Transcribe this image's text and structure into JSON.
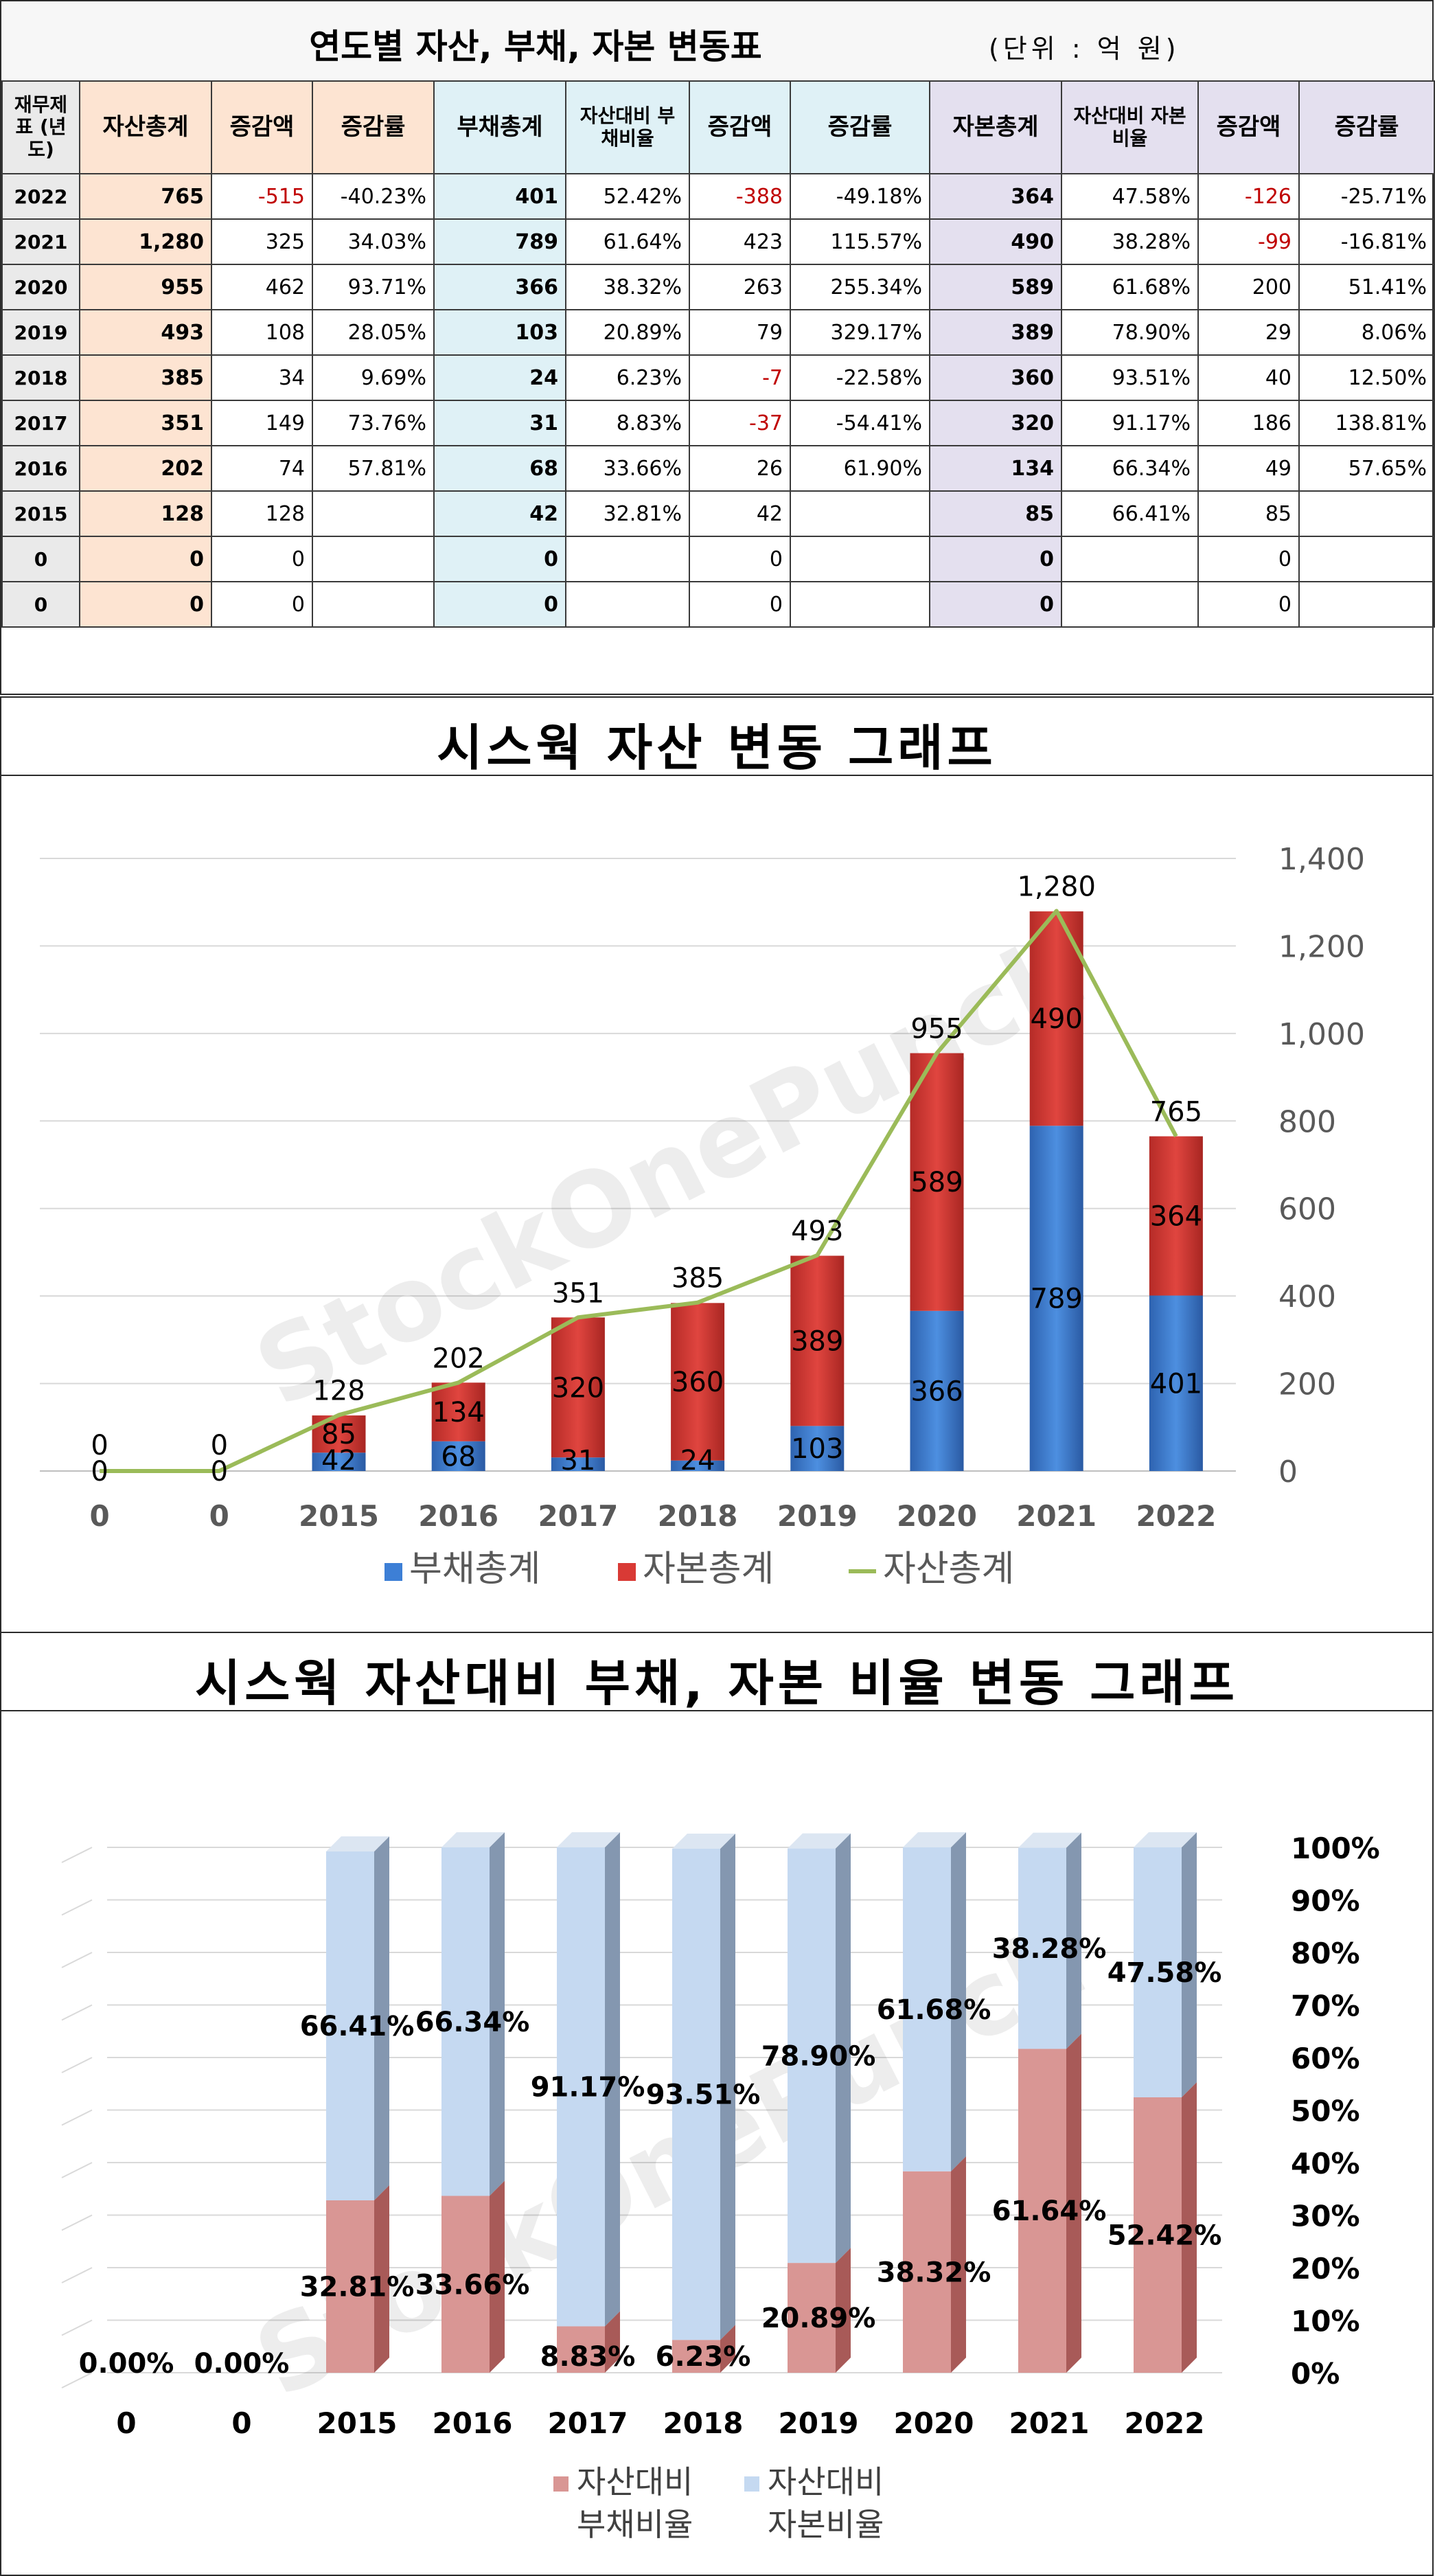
{
  "table": {
    "title": "연도별 자산, 부채, 자본 변동표",
    "unit": "(단위 : 억 원)",
    "headers": [
      "재무제표 (년도)",
      "자산총계",
      "증감액",
      "증감률",
      "부채총계",
      "자산대비 부채비율",
      "증감액",
      "증감률",
      "자본총계",
      "자산대비 자본비율",
      "증감액",
      "증감률"
    ],
    "rows": [
      {
        "year": "2022",
        "asset": "765",
        "asset_chg": "-515",
        "asset_rate": "-40.23%",
        "debt": "401",
        "debt_ratio": "52.42%",
        "debt_chg": "-388",
        "debt_rate": "-49.18%",
        "equity": "364",
        "equity_ratio": "47.58%",
        "equity_chg": "-126",
        "equity_rate": "-25.71%"
      },
      {
        "year": "2021",
        "asset": "1,280",
        "asset_chg": "325",
        "asset_rate": "34.03%",
        "debt": "789",
        "debt_ratio": "61.64%",
        "debt_chg": "423",
        "debt_rate": "115.57%",
        "equity": "490",
        "equity_ratio": "38.28%",
        "equity_chg": "-99",
        "equity_rate": "-16.81%"
      },
      {
        "year": "2020",
        "asset": "955",
        "asset_chg": "462",
        "asset_rate": "93.71%",
        "debt": "366",
        "debt_ratio": "38.32%",
        "debt_chg": "263",
        "debt_rate": "255.34%",
        "equity": "589",
        "equity_ratio": "61.68%",
        "equity_chg": "200",
        "equity_rate": "51.41%"
      },
      {
        "year": "2019",
        "asset": "493",
        "asset_chg": "108",
        "asset_rate": "28.05%",
        "debt": "103",
        "debt_ratio": "20.89%",
        "debt_chg": "79",
        "debt_rate": "329.17%",
        "equity": "389",
        "equity_ratio": "78.90%",
        "equity_chg": "29",
        "equity_rate": "8.06%"
      },
      {
        "year": "2018",
        "asset": "385",
        "asset_chg": "34",
        "asset_rate": "9.69%",
        "debt": "24",
        "debt_ratio": "6.23%",
        "debt_chg": "-7",
        "debt_rate": "-22.58%",
        "equity": "360",
        "equity_ratio": "93.51%",
        "equity_chg": "40",
        "equity_rate": "12.50%"
      },
      {
        "year": "2017",
        "asset": "351",
        "asset_chg": "149",
        "asset_rate": "73.76%",
        "debt": "31",
        "debt_ratio": "8.83%",
        "debt_chg": "-37",
        "debt_rate": "-54.41%",
        "equity": "320",
        "equity_ratio": "91.17%",
        "equity_chg": "186",
        "equity_rate": "138.81%"
      },
      {
        "year": "2016",
        "asset": "202",
        "asset_chg": "74",
        "asset_rate": "57.81%",
        "debt": "68",
        "debt_ratio": "33.66%",
        "debt_chg": "26",
        "debt_rate": "61.90%",
        "equity": "134",
        "equity_ratio": "66.34%",
        "equity_chg": "49",
        "equity_rate": "57.65%"
      },
      {
        "year": "2015",
        "asset": "128",
        "asset_chg": "128",
        "asset_rate": "",
        "debt": "42",
        "debt_ratio": "32.81%",
        "debt_chg": "42",
        "debt_rate": "",
        "equity": "85",
        "equity_ratio": "66.41%",
        "equity_chg": "85",
        "equity_rate": ""
      },
      {
        "year": "0",
        "asset": "0",
        "asset_chg": "0",
        "asset_rate": "",
        "debt": "0",
        "debt_ratio": "",
        "debt_chg": "0",
        "debt_rate": "",
        "equity": "0",
        "equity_ratio": "",
        "equity_chg": "0",
        "equity_rate": ""
      },
      {
        "year": "0",
        "asset": "0",
        "asset_chg": "0",
        "asset_rate": "",
        "debt": "0",
        "debt_ratio": "",
        "debt_chg": "0",
        "debt_rate": "",
        "equity": "0",
        "equity_ratio": "",
        "equity_chg": "0",
        "equity_rate": ""
      }
    ]
  },
  "watermark": "StockOnePunch",
  "chart_data": [
    {
      "type": "bar",
      "stacked": true,
      "title": "시스웍 자산 변동 그래프",
      "categories": [
        "0",
        "0",
        "2015",
        "2016",
        "2017",
        "2018",
        "2019",
        "2020",
        "2021",
        "2022"
      ],
      "series": [
        {
          "name": "부채총계",
          "kind": "bar",
          "color": "#3d7fd6",
          "values": [
            0,
            0,
            42,
            68,
            31,
            24,
            103,
            366,
            789,
            401
          ]
        },
        {
          "name": "자본총계",
          "kind": "bar",
          "color": "#d93a35",
          "values": [
            0,
            0,
            85,
            134,
            320,
            360,
            389,
            589,
            490,
            364
          ]
        },
        {
          "name": "자산총계",
          "kind": "line",
          "color": "#9bbb59",
          "values": [
            0,
            0,
            128,
            202,
            351,
            385,
            493,
            955,
            1280,
            765
          ]
        }
      ],
      "total_labels": [
        "0",
        "0",
        "128",
        "202",
        "351",
        "385",
        "493",
        "955",
        "1,280",
        "765"
      ],
      "debt_labels": [
        "0",
        "0",
        "42",
        "68",
        "31",
        "24",
        "103",
        "366",
        "789",
        "401"
      ],
      "equity_labels": [
        "",
        "",
        "85",
        "134",
        "320",
        "360",
        "389",
        "589",
        "490",
        "364"
      ],
      "yticks": [
        "0",
        "200",
        "400",
        "600",
        "800",
        "1,000",
        "1,200",
        "1,400"
      ],
      "ylim": [
        0,
        1400
      ],
      "y_axis_side": "right",
      "grid": true,
      "legend": "bottom"
    },
    {
      "type": "bar",
      "stacked": true,
      "percent": true,
      "title": "시스웍 자산대비 부채, 자본 비율 변동 그래프",
      "categories": [
        "0",
        "0",
        "2015",
        "2016",
        "2017",
        "2018",
        "2019",
        "2020",
        "2021",
        "2022"
      ],
      "series": [
        {
          "name": "자산대비 부채비율",
          "color": "#d99694",
          "values": [
            0,
            0,
            32.81,
            33.66,
            8.83,
            6.23,
            20.89,
            38.32,
            61.64,
            52.42
          ]
        },
        {
          "name": "자산대비 자본비율",
          "color": "#c5d9f1",
          "values": [
            0,
            0,
            66.41,
            66.34,
            91.17,
            93.51,
            78.9,
            61.68,
            38.28,
            47.58
          ]
        }
      ],
      "debt_labels": [
        "0.00%",
        "0.00%",
        "32.81%",
        "33.66%",
        "8.83%",
        "6.23%",
        "20.89%",
        "38.32%",
        "61.64%",
        "52.42%"
      ],
      "equity_labels": [
        "",
        "",
        "66.41%",
        "66.34%",
        "91.17%",
        "93.51%",
        "78.90%",
        "61.68%",
        "38.28%",
        "47.58%"
      ],
      "yticks": [
        "0%",
        "10%",
        "20%",
        "30%",
        "40%",
        "50%",
        "60%",
        "70%",
        "80%",
        "90%",
        "100%"
      ],
      "ylim": [
        0,
        100
      ],
      "y_axis_side": "right",
      "grid": true,
      "legend": "bottom",
      "legend_lines": [
        [
          "자산대비",
          "부채비율"
        ],
        [
          "자산대비",
          "자본비율"
        ]
      ]
    }
  ]
}
